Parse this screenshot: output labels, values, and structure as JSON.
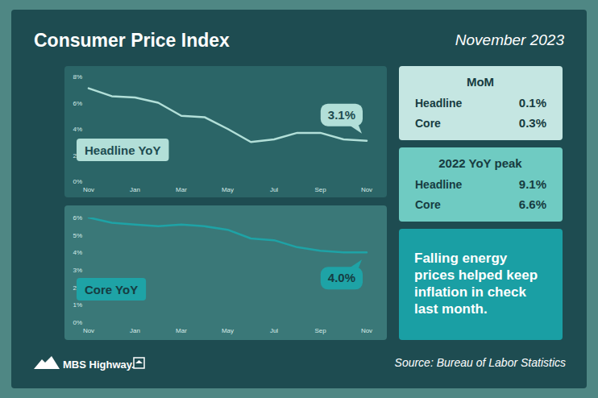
{
  "header": {
    "title": "Consumer Price Index",
    "date": "November 2023"
  },
  "chart_data": [
    {
      "type": "line",
      "title": "Headline YoY",
      "categories": [
        "Nov",
        null,
        "Jan",
        null,
        "Mar",
        null,
        "May",
        null,
        "Jul",
        null,
        "Sep",
        null,
        "Nov"
      ],
      "values": [
        7.1,
        6.5,
        6.4,
        6.0,
        5.0,
        4.9,
        4.0,
        3.0,
        3.2,
        3.7,
        3.7,
        3.2,
        3.1
      ],
      "color": "#b2dfd8",
      "ylim": [
        0,
        8
      ],
      "yticks": [
        {
          "value": 0,
          "label": "0%"
        },
        {
          "value": 2,
          "label": "2%"
        },
        {
          "value": 4,
          "label": "4%"
        },
        {
          "value": 6,
          "label": "6%"
        },
        {
          "value": 8,
          "label": "8%"
        }
      ],
      "grid": false,
      "annotation": "3.1%"
    },
    {
      "type": "line",
      "title": "Core YoY",
      "categories": [
        "Nov",
        null,
        "Jan",
        null,
        "Mar",
        null,
        "May",
        null,
        "Jul",
        null,
        "Sep",
        null,
        "Nov"
      ],
      "values": [
        6.0,
        5.7,
        5.6,
        5.5,
        5.6,
        5.5,
        5.3,
        4.8,
        4.7,
        4.3,
        4.1,
        4.0,
        4.0
      ],
      "color": "#1ea3a6",
      "ylim": [
        0,
        6
      ],
      "yticks": [
        {
          "value": 0,
          "label": "0%"
        },
        {
          "value": 1,
          "label": "1%"
        },
        {
          "value": 2,
          "label": "2%"
        },
        {
          "value": 3,
          "label": "3%"
        },
        {
          "value": 4,
          "label": "4%"
        },
        {
          "value": 5,
          "label": "5%"
        },
        {
          "value": 6,
          "label": "6%"
        }
      ],
      "grid": false,
      "annotation": "4.0%"
    }
  ],
  "mom": {
    "title": "MoM",
    "rows": [
      [
        "Headline",
        "0.1%"
      ],
      [
        "Core",
        "0.3%"
      ]
    ]
  },
  "peak": {
    "title": "2022 YoY peak",
    "rows": [
      [
        "Headline",
        "9.1%"
      ],
      [
        "Core",
        "6.6%"
      ]
    ]
  },
  "note": "Falling energy prices helped keep inflation in check last month.",
  "footer": {
    "logo": "MBS Highway.",
    "source": "Source: Bureau of Labor Statistics"
  }
}
